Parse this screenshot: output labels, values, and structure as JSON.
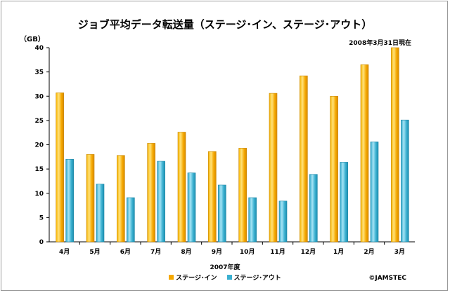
{
  "chart_data": {
    "type": "bar",
    "title": "ジョブ平均データ転送量（ステージ･イン、ステージ･アウト）",
    "ylabel": "（GB）",
    "xlabel": "2007年度",
    "note": "2008年3月31日現在",
    "copyright": "©JAMSTEC",
    "ylim": [
      0,
      40
    ],
    "yticks": [
      0,
      5,
      10,
      15,
      20,
      25,
      30,
      35,
      40
    ],
    "grid": false,
    "legend_position": "bottom",
    "categories": [
      "4月",
      "5月",
      "6月",
      "7月",
      "8月",
      "9月",
      "10月",
      "11月",
      "12月",
      "1月",
      "2月",
      "3月"
    ],
    "series": [
      {
        "name": "ステージ･イン",
        "color": "#f5a800",
        "values": [
          30.7,
          18.0,
          17.8,
          20.3,
          22.6,
          18.6,
          19.3,
          30.6,
          34.2,
          30.0,
          36.5,
          40.0
        ]
      },
      {
        "name": "ステージ･アウト",
        "color": "#3bb0d0",
        "values": [
          17.0,
          11.9,
          9.1,
          16.6,
          14.2,
          11.7,
          9.1,
          8.4,
          13.9,
          16.4,
          20.6,
          25.1
        ]
      }
    ]
  }
}
